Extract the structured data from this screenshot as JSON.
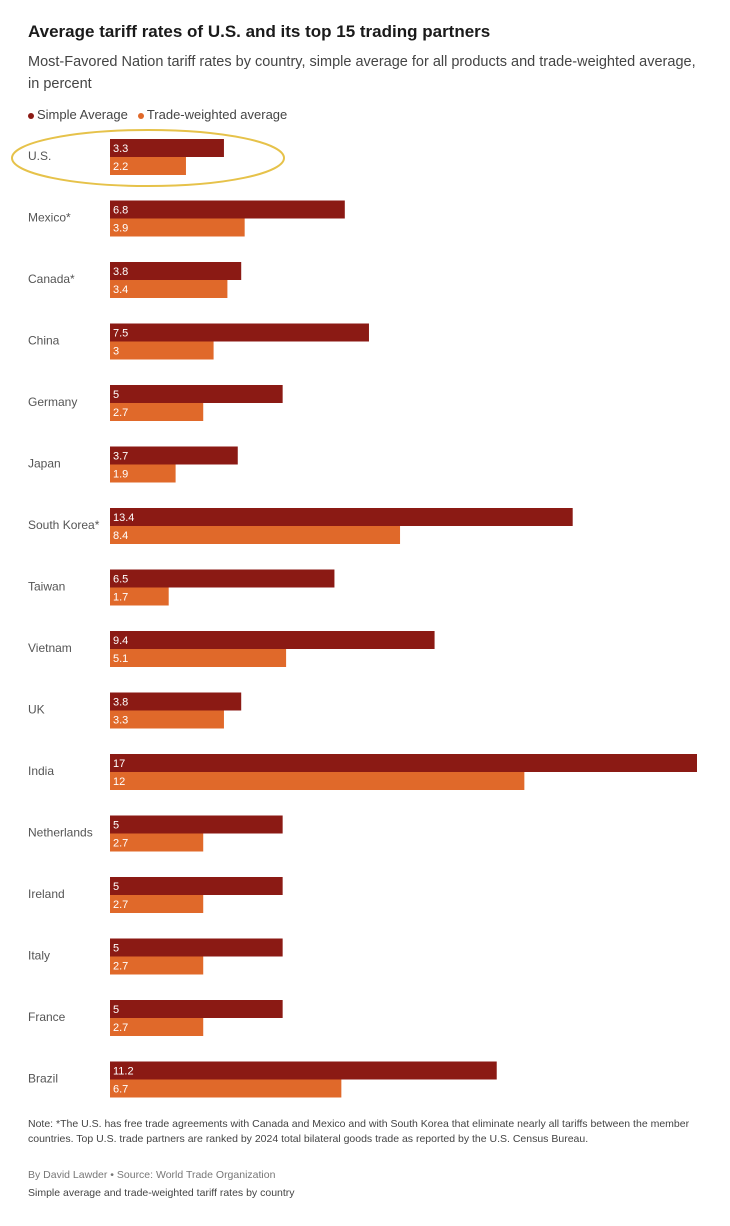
{
  "chart_data": {
    "type": "bar",
    "orientation": "horizontal",
    "title": "Average tariff rates of U.S. and its top 15 trading partners",
    "subtitle": "Most-Favored Nation tariff rates by country, simple average for all products and trade-weighted average, in percent",
    "categories": [
      "U.S.",
      "Mexico*",
      "Canada*",
      "China",
      "Germany",
      "Japan",
      "South Korea*",
      "Taiwan",
      "Vietnam",
      "UK",
      "India",
      "Netherlands",
      "Ireland",
      "Italy",
      "France",
      "Brazil"
    ],
    "series": [
      {
        "name": "Simple Average",
        "color": "#8b1a14",
        "values": [
          3.3,
          6.8,
          3.8,
          7.5,
          5,
          3.7,
          13.4,
          6.5,
          9.4,
          3.8,
          17,
          5,
          5,
          5,
          5,
          11.2
        ]
      },
      {
        "name": "Trade-weighted average",
        "color": "#e0692a",
        "values": [
          2.2,
          3.9,
          3.4,
          3,
          2.7,
          1.9,
          8.4,
          1.7,
          5.1,
          3.3,
          12,
          2.7,
          2.7,
          2.7,
          2.7,
          6.7
        ]
      }
    ],
    "note": "Note: *The U.S. has free trade agreements with Canada and Mexico and with South Korea that eliminate nearly all tariffs between the member countries. Top U.S. trade partners are ranked by 2024 total bilateral goods trade as reported by the U.S. Census Bureau.",
    "byline": "By David Lawder • Source: World Trade Organization",
    "footer": "Simple average and trade-weighted tariff rates by country"
  }
}
